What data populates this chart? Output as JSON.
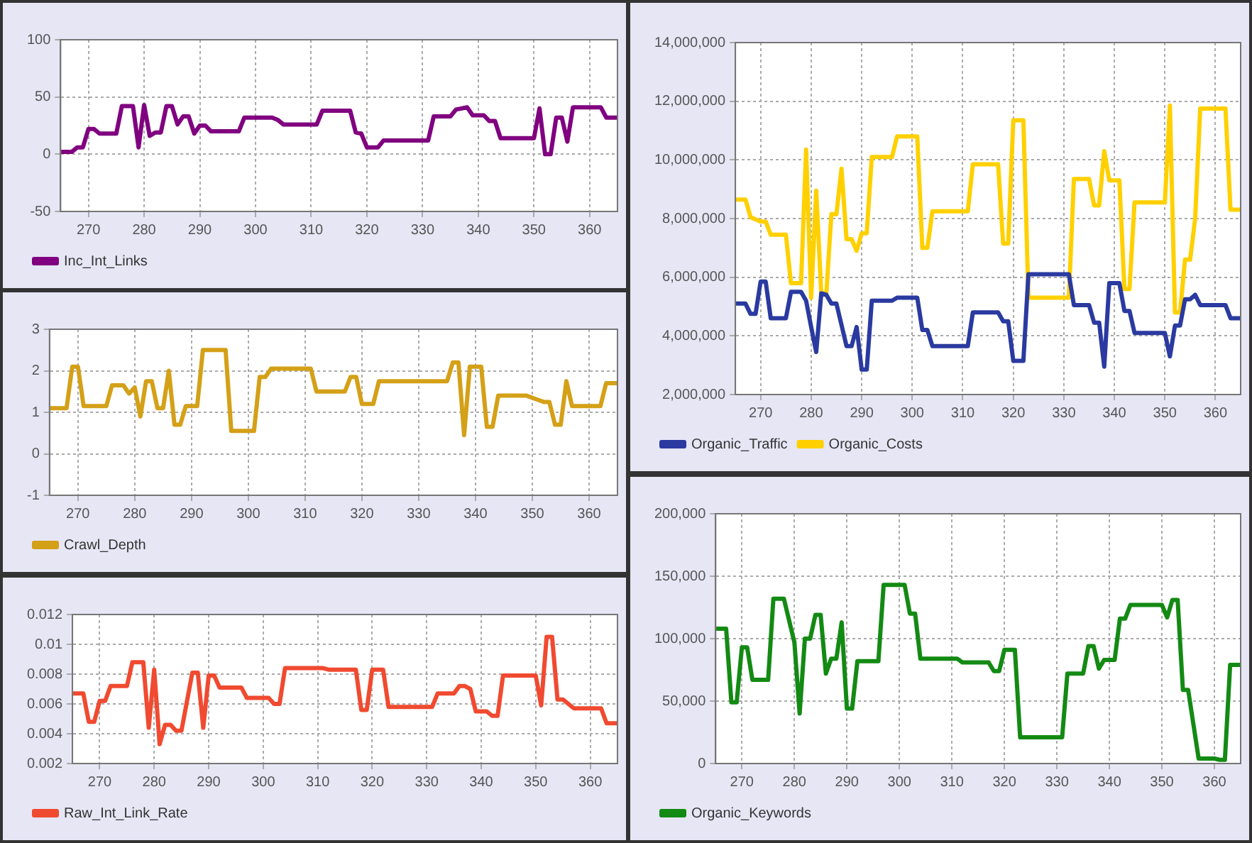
{
  "chart_data": [
    {
      "type": "line",
      "xlim": [
        265,
        365
      ],
      "xticks": [
        270,
        280,
        290,
        300,
        310,
        320,
        330,
        340,
        350,
        360
      ],
      "ylim": [
        -50,
        100
      ],
      "yticks": [
        -50,
        0,
        50,
        100
      ],
      "grid": true,
      "legend": "bottom left",
      "series": [
        {
          "name": "Inc_Int_Links",
          "color": "#800080",
          "x": [
            265,
            267,
            268,
            269,
            270,
            271,
            272,
            275,
            276,
            278,
            279,
            280,
            281,
            282,
            283,
            284,
            285,
            286,
            287,
            288,
            289,
            290,
            291,
            292,
            297,
            298,
            303,
            304,
            305,
            311,
            312,
            317,
            318,
            319,
            320,
            322,
            323,
            331,
            332,
            335,
            336,
            338,
            339,
            341,
            342,
            343,
            344,
            350,
            351,
            352,
            353,
            354,
            355,
            356,
            357,
            362,
            363,
            365
          ],
          "values": [
            2,
            2,
            6,
            6,
            22,
            22,
            18,
            18,
            42,
            42,
            6,
            43,
            16,
            19,
            19,
            42,
            42,
            26,
            33,
            33,
            18,
            25,
            25,
            20,
            20,
            32,
            32,
            30,
            26,
            26,
            38,
            38,
            19,
            18,
            6,
            6,
            12,
            12,
            33,
            33,
            39,
            41,
            34,
            34,
            29,
            29,
            14,
            14,
            40,
            0,
            0,
            32,
            32,
            11,
            41,
            41,
            32,
            32
          ]
        }
      ]
    },
    {
      "type": "line",
      "xlim": [
        265,
        365
      ],
      "xticks": [
        270,
        280,
        290,
        300,
        310,
        320,
        330,
        340,
        350,
        360
      ],
      "ylim": [
        -1,
        3
      ],
      "yticks": [
        -1,
        0,
        1,
        2,
        3
      ],
      "grid": true,
      "legend": "bottom left",
      "series": [
        {
          "name": "Crawl_Depth",
          "color": "#d4a017",
          "x": [
            265,
            268,
            269,
            270,
            271,
            275,
            276,
            278,
            279,
            280,
            281,
            282,
            283,
            284,
            285,
            286,
            287,
            288,
            289,
            291,
            292,
            296,
            297,
            301,
            302,
            303,
            304,
            311,
            312,
            317,
            318,
            319,
            320,
            322,
            323,
            335,
            336,
            337,
            338,
            339,
            341,
            342,
            343,
            344,
            349,
            351,
            352,
            353,
            354,
            355,
            356,
            357,
            362,
            363,
            365
          ],
          "values": [
            1.1,
            1.1,
            2.1,
            2.1,
            1.15,
            1.15,
            1.65,
            1.65,
            1.45,
            1.6,
            0.9,
            1.75,
            1.75,
            1.1,
            1.1,
            2.0,
            0.7,
            0.7,
            1.15,
            1.15,
            2.5,
            2.5,
            0.55,
            0.55,
            1.85,
            1.85,
            2.05,
            2.05,
            1.5,
            1.5,
            1.85,
            1.85,
            1.2,
            1.2,
            1.75,
            1.75,
            2.2,
            2.2,
            0.45,
            2.1,
            2.1,
            0.65,
            0.65,
            1.4,
            1.4,
            1.3,
            1.25,
            1.25,
            0.7,
            0.7,
            1.75,
            1.15,
            1.15,
            1.7,
            1.7
          ]
        }
      ]
    },
    {
      "type": "line",
      "xlim": [
        265,
        365
      ],
      "xticks": [
        270,
        280,
        290,
        300,
        310,
        320,
        330,
        340,
        350,
        360
      ],
      "ylim": [
        0.002,
        0.012
      ],
      "yticks": [
        0.002,
        0.004,
        0.006,
        0.008,
        0.01,
        0.012
      ],
      "grid": true,
      "legend": "bottom left",
      "series": [
        {
          "name": "Raw_Int_Link_Rate",
          "color": "#f04a30",
          "x": [
            265,
            267,
            268,
            269,
            270,
            271,
            272,
            275,
            276,
            278,
            279,
            280,
            281,
            282,
            283,
            284,
            285,
            287,
            288,
            289,
            290,
            291,
            292,
            296,
            297,
            301,
            302,
            303,
            304,
            311,
            312,
            317,
            318,
            319,
            320,
            322,
            323,
            331,
            332,
            335,
            336,
            337,
            338,
            339,
            341,
            342,
            343,
            344,
            350,
            351,
            352,
            353,
            354,
            355,
            357,
            362,
            363,
            365
          ],
          "values": [
            0.0067,
            0.0067,
            0.0048,
            0.0048,
            0.0062,
            0.0062,
            0.0072,
            0.0072,
            0.0088,
            0.0088,
            0.0044,
            0.0083,
            0.0033,
            0.0046,
            0.0046,
            0.0042,
            0.0042,
            0.0081,
            0.0081,
            0.0044,
            0.0079,
            0.0079,
            0.0071,
            0.0071,
            0.0064,
            0.0064,
            0.006,
            0.006,
            0.0084,
            0.0084,
            0.0083,
            0.0083,
            0.0056,
            0.0056,
            0.0083,
            0.0083,
            0.0058,
            0.0058,
            0.0067,
            0.0067,
            0.0072,
            0.0072,
            0.007,
            0.0055,
            0.0055,
            0.0052,
            0.0052,
            0.0079,
            0.0079,
            0.0059,
            0.0105,
            0.0105,
            0.0063,
            0.0063,
            0.0057,
            0.0057,
            0.0047,
            0.0047
          ]
        }
      ]
    },
    {
      "type": "line",
      "xlim": [
        265,
        365
      ],
      "xticks": [
        270,
        280,
        290,
        300,
        310,
        320,
        330,
        340,
        350,
        360
      ],
      "ylim": [
        2000000,
        14000000
      ],
      "yticks": [
        {
          "value": 2000000,
          "label": "2,000,000"
        },
        {
          "value": 4000000,
          "label": "4,000,000"
        },
        {
          "value": 6000000,
          "label": "6,000,000"
        },
        {
          "value": 8000000,
          "label": "8,000,000"
        },
        {
          "value": 10000000,
          "label": "10,000,000"
        },
        {
          "value": 12000000,
          "label": "12,000,000"
        },
        {
          "value": 14000000,
          "label": "14,000,000"
        }
      ],
      "grid": true,
      "legend": "bottom left",
      "series": [
        {
          "name": "Organic_Traffic",
          "color": "#2a3aa0",
          "x": [
            265,
            267,
            268,
            269,
            270,
            271,
            272,
            275,
            276,
            278,
            279,
            280,
            281,
            282,
            283,
            284,
            285,
            287,
            288,
            289,
            290,
            291,
            292,
            296,
            297,
            301,
            302,
            303,
            304,
            311,
            312,
            317,
            318,
            319,
            320,
            322,
            323,
            331,
            332,
            335,
            336,
            337,
            338,
            339,
            341,
            342,
            343,
            344,
            350,
            351,
            352,
            353,
            354,
            355,
            356,
            357,
            362,
            363,
            365
          ],
          "values": [
            5100000,
            5100000,
            4750000,
            4750000,
            5850000,
            5850000,
            4600000,
            4600000,
            5500000,
            5500000,
            5200000,
            4300000,
            3450000,
            5450000,
            5400000,
            5100000,
            5100000,
            3650000,
            3650000,
            4300000,
            2850000,
            2850000,
            5200000,
            5200000,
            5300000,
            5300000,
            4200000,
            4200000,
            3650000,
            3650000,
            4800000,
            4800000,
            4500000,
            4500000,
            3150000,
            3150000,
            6100000,
            6100000,
            5050000,
            5050000,
            4450000,
            4450000,
            2950000,
            5800000,
            5800000,
            4850000,
            4850000,
            4100000,
            4100000,
            3300000,
            4350000,
            4350000,
            5250000,
            5250000,
            5400000,
            5050000,
            5050000,
            4600000,
            4600000
          ]
        },
        {
          "name": "Organic_Costs",
          "color": "#ffd000",
          "x": [
            265,
            267,
            268,
            270,
            271,
            272,
            275,
            276,
            278,
            279,
            280,
            281,
            282,
            283,
            284,
            285,
            286,
            287,
            288,
            289,
            290,
            291,
            292,
            296,
            297,
            301,
            302,
            303,
            304,
            311,
            312,
            317,
            318,
            319,
            320,
            322,
            323,
            331,
            332,
            335,
            336,
            337,
            338,
            339,
            341,
            342,
            343,
            344,
            350,
            351,
            352,
            353,
            354,
            355,
            356,
            357,
            362,
            363,
            365
          ],
          "values": [
            8650000,
            8650000,
            8050000,
            7900000,
            7900000,
            7450000,
            7450000,
            5800000,
            5800000,
            10350000,
            5300000,
            8950000,
            5450000,
            5450000,
            8150000,
            8150000,
            9700000,
            7300000,
            7300000,
            6900000,
            7500000,
            7500000,
            10100000,
            10100000,
            10800000,
            10800000,
            7000000,
            7000000,
            8250000,
            8250000,
            9850000,
            9850000,
            7150000,
            7150000,
            11350000,
            11350000,
            5300000,
            5300000,
            9350000,
            9350000,
            8450000,
            8450000,
            10300000,
            9300000,
            9300000,
            5600000,
            5600000,
            8550000,
            8550000,
            11850000,
            4800000,
            4800000,
            6600000,
            6600000,
            8000000,
            11750000,
            11750000,
            8300000,
            8300000
          ]
        }
      ]
    },
    {
      "type": "line",
      "xlim": [
        265,
        365
      ],
      "xticks": [
        270,
        280,
        290,
        300,
        310,
        320,
        330,
        340,
        350,
        360
      ],
      "ylim": [
        0,
        200000
      ],
      "yticks": [
        0,
        {
          "value": 50000,
          "label": "50,000"
        },
        {
          "value": 100000,
          "label": "100,000"
        },
        {
          "value": 150000,
          "label": "150,000"
        },
        {
          "value": 200000,
          "label": "200,000"
        }
      ],
      "grid": true,
      "legend": "bottom left",
      "series": [
        {
          "name": "Organic_Keywords",
          "color": "#138a13",
          "x": [
            265,
            267,
            268,
            269,
            270,
            271,
            272,
            275,
            276,
            278,
            280,
            281,
            282,
            283,
            284,
            285,
            286,
            287,
            288,
            289,
            290,
            291,
            292,
            296,
            297,
            301,
            302,
            303,
            304,
            311,
            312,
            317,
            318,
            319,
            320,
            322,
            323,
            331,
            332,
            335,
            336,
            337,
            338,
            339,
            341,
            342,
            343,
            344,
            350,
            351,
            352,
            353,
            354,
            355,
            357,
            360,
            361,
            362,
            363,
            365
          ],
          "values": [
            108000,
            108000,
            49000,
            49000,
            93000,
            93000,
            67000,
            67000,
            132000,
            132000,
            97000,
            40000,
            100000,
            100000,
            119000,
            119000,
            72000,
            84000,
            84000,
            113000,
            44000,
            44000,
            82000,
            82000,
            143000,
            143000,
            120000,
            120000,
            84000,
            84000,
            81000,
            81000,
            74000,
            74000,
            91000,
            91000,
            21000,
            21000,
            72000,
            72000,
            94000,
            94000,
            76000,
            83000,
            83000,
            116000,
            116000,
            127000,
            127000,
            117000,
            131000,
            131000,
            59000,
            59000,
            4000,
            4000,
            3000,
            3000,
            79000,
            79000
          ]
        }
      ]
    }
  ]
}
